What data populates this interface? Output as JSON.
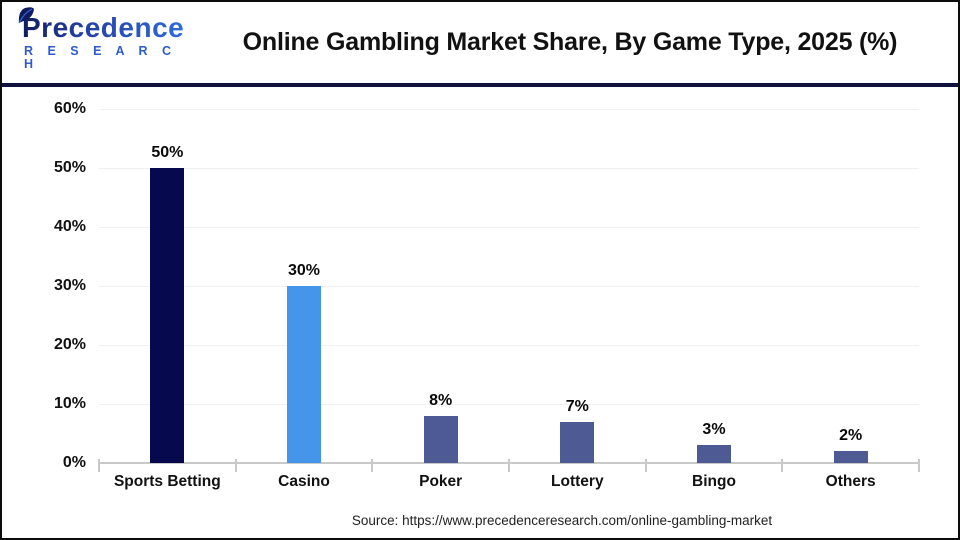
{
  "header": {
    "logo": {
      "brand_main": "Precedence",
      "brand_sub": "R E S E A R C H",
      "leaf_icon": "leaf-icon",
      "navy": "#101b5e",
      "blue": "#2e5bce"
    },
    "title": "Online Gambling Market Share, By Game Type, 2025 (%)"
  },
  "chart_data": {
    "type": "bar",
    "title": "Online Gambling Market Share, By Game Type, 2025 (%)",
    "categories": [
      "Sports Betting",
      "Casino",
      "Poker",
      "Lottery",
      "Bingo",
      "Others"
    ],
    "values": [
      50,
      30,
      8,
      7,
      3,
      2
    ],
    "value_labels": [
      "50%",
      "30%",
      "8%",
      "7%",
      "3%",
      "2%"
    ],
    "bar_colors": [
      "#07094f",
      "#4596ea",
      "#4d5a94",
      "#4d5a94",
      "#4d5a94",
      "#4d5a94"
    ],
    "xlabel": "",
    "ylabel": "",
    "ylim": [
      0,
      60
    ],
    "ytick_values": [
      0,
      10,
      20,
      30,
      40,
      50,
      60
    ],
    "ytick_labels": [
      "0%",
      "10%",
      "20%",
      "30%",
      "40%",
      "50%",
      "60%"
    ],
    "grid": true,
    "legend": false,
    "gridline_color": "#f0f0f0",
    "axis_color": "#c9c9c9"
  },
  "footer": {
    "source": "Source: https://www.precedenceresearch.com/online-gambling-market"
  }
}
